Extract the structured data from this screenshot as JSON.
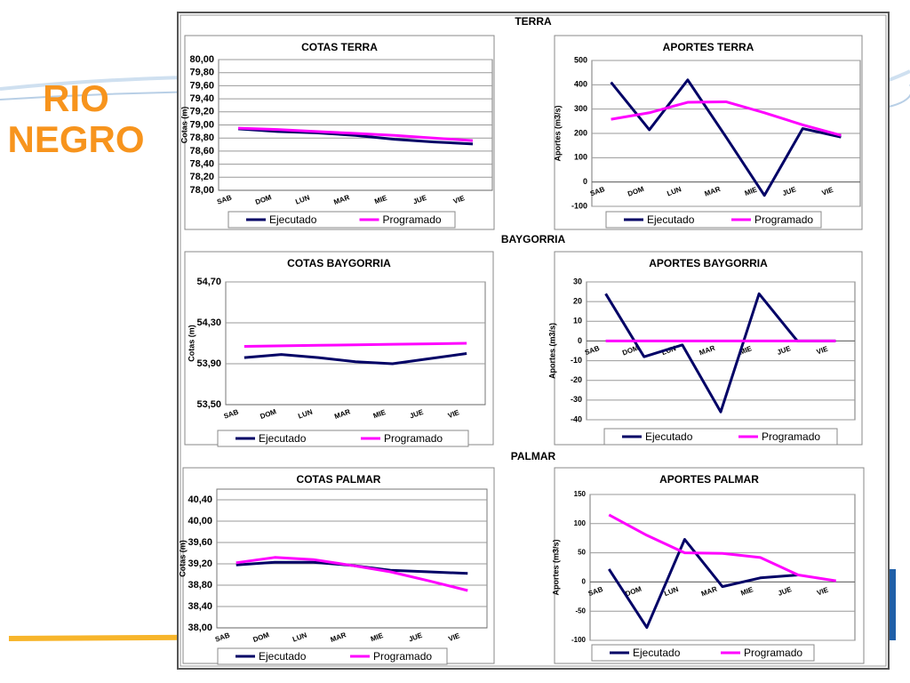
{
  "slide": {
    "title": "RIO NEGRO",
    "sections": [
      "TERRA",
      "BAYGORRIA",
      "PALMAR"
    ]
  },
  "chart_data": [
    {
      "type": "line",
      "title": "COTAS TERRA",
      "y_label": "Cotas (m)",
      "categories": [
        "SAB",
        "DOM",
        "LUN",
        "MAR",
        "MIE",
        "JUE",
        "VIE"
      ],
      "series": [
        {
          "name": "Ejecutado",
          "color": "#000066",
          "values": [
            78.94,
            78.9,
            78.88,
            78.84,
            78.78,
            78.74,
            78.71
          ]
        },
        {
          "name": "Programado",
          "color": "#ff00ff",
          "values": [
            78.95,
            78.93,
            78.9,
            78.87,
            78.84,
            78.8,
            78.76
          ]
        }
      ],
      "ylim": [
        78,
        80
      ],
      "yticks": [
        {
          "value": 78,
          "label": "78,00"
        },
        {
          "value": 78.2,
          "label": "78,20"
        },
        {
          "value": 78.4,
          "label": "78,40"
        },
        {
          "value": 78.6,
          "label": "78,60"
        },
        {
          "value": 78.8,
          "label": "78,80"
        },
        {
          "value": 79,
          "label": "79,00"
        },
        {
          "value": 79.2,
          "label": "79,20"
        },
        {
          "value": 79.4,
          "label": "79,40"
        },
        {
          "value": 79.6,
          "label": "79,60"
        },
        {
          "value": 79.8,
          "label": "79,80"
        },
        {
          "value": 80,
          "label": "80,00"
        }
      ],
      "grid": true,
      "legend": "bottom"
    },
    {
      "type": "line",
      "title": "APORTES TERRA",
      "y_label": "Aportes (m3/s)",
      "categories": [
        "SAB",
        "DOM",
        "LUN",
        "MAR",
        "MIE",
        "JUE",
        "VIE"
      ],
      "series": [
        {
          "name": "Ejecutado",
          "color": "#000066",
          "values": [
            410,
            215,
            420,
            185,
            -55,
            220,
            185
          ]
        },
        {
          "name": "Programado",
          "color": "#ff00ff",
          "values": [
            258,
            285,
            328,
            330,
            285,
            235,
            192
          ]
        }
      ],
      "ylim": [
        -100,
        500
      ],
      "yticks": [
        -100,
        0,
        100,
        200,
        300,
        400,
        500
      ],
      "grid": true,
      "legend": "bottom"
    },
    {
      "type": "line",
      "title": "COTAS BAYGORRIA",
      "y_label": "Cotas (m)",
      "categories": [
        "SAB",
        "DOM",
        "LUN",
        "MAR",
        "MIE",
        "JUE",
        "VIE"
      ],
      "series": [
        {
          "name": "Ejecutado",
          "color": "#000066",
          "values": [
            53.96,
            53.99,
            53.96,
            53.92,
            53.9,
            53.95,
            54.0
          ]
        },
        {
          "name": "Programado",
          "color": "#ff00ff",
          "values": [
            54.07,
            54.075,
            54.08,
            54.085,
            54.09,
            54.095,
            54.1
          ]
        }
      ],
      "ylim": [
        53.5,
        54.7
      ],
      "yticks": [
        {
          "value": 53.5,
          "label": "53,50"
        },
        {
          "value": 53.9,
          "label": "53,90"
        },
        {
          "value": 54.3,
          "label": "54,30"
        },
        {
          "value": 54.7,
          "label": "54,70"
        }
      ],
      "grid": true,
      "legend": "bottom"
    },
    {
      "type": "line",
      "title": "APORTES BAYGORRIA",
      "y_label": "Aportes (m3/s)",
      "categories": [
        "SAB",
        "DOM",
        "LUN",
        "MAR",
        "MIE",
        "JUE",
        "VIE"
      ],
      "series": [
        {
          "name": "Ejecutado",
          "color": "#000066",
          "values": [
            24,
            -8,
            -2,
            -36,
            24,
            0,
            0
          ]
        },
        {
          "name": "Programado",
          "color": "#ff00ff",
          "values": [
            0,
            0,
            0,
            0,
            0,
            0,
            0
          ]
        }
      ],
      "ylim": [
        -40,
        30
      ],
      "yticks": [
        -40,
        -30,
        -20,
        -10,
        0,
        10,
        20,
        30
      ],
      "grid": true,
      "legend": "bottom"
    },
    {
      "type": "line",
      "title": "COTAS PALMAR",
      "y_label": "Cotas (m)",
      "categories": [
        "SAB",
        "DOM",
        "LUN",
        "MAR",
        "MIE",
        "JUE",
        "VIE"
      ],
      "series": [
        {
          "name": "Ejecutado",
          "color": "#000066",
          "values": [
            39.18,
            39.23,
            39.23,
            39.17,
            39.08,
            39.05,
            39.02
          ]
        },
        {
          "name": "Programado",
          "color": "#ff00ff",
          "values": [
            39.22,
            39.32,
            39.28,
            39.17,
            39.05,
            38.88,
            38.7
          ]
        }
      ],
      "ylim": [
        38,
        40.6
      ],
      "yticks": [
        {
          "value": 38,
          "label": "38,00"
        },
        {
          "value": 38.4,
          "label": "38,40"
        },
        {
          "value": 38.8,
          "label": "38,80"
        },
        {
          "value": 39.2,
          "label": "39,20"
        },
        {
          "value": 39.6,
          "label": "39,60"
        },
        {
          "value": 40,
          "label": "40,00"
        },
        {
          "value": 40.4,
          "label": "40,40"
        }
      ],
      "grid": true,
      "legend": "bottom"
    },
    {
      "type": "line",
      "title": "APORTES PALMAR",
      "y_label": "Aportes (m3/s)",
      "categories": [
        "SAB",
        "DOM",
        "LUN",
        "MAR",
        "MIE",
        "JUE",
        "VIE"
      ],
      "series": [
        {
          "name": "Ejecutado",
          "color": "#000066",
          "values": [
            22,
            -78,
            73,
            -8,
            7,
            12,
            null
          ]
        },
        {
          "name": "Programado",
          "color": "#ff00ff",
          "values": [
            115,
            80,
            50,
            49,
            42,
            12,
            2
          ]
        }
      ],
      "ylim": [
        -100,
        150
      ],
      "yticks": [
        -100,
        -50,
        0,
        50,
        100,
        150
      ],
      "grid": true,
      "legend": "bottom"
    }
  ]
}
